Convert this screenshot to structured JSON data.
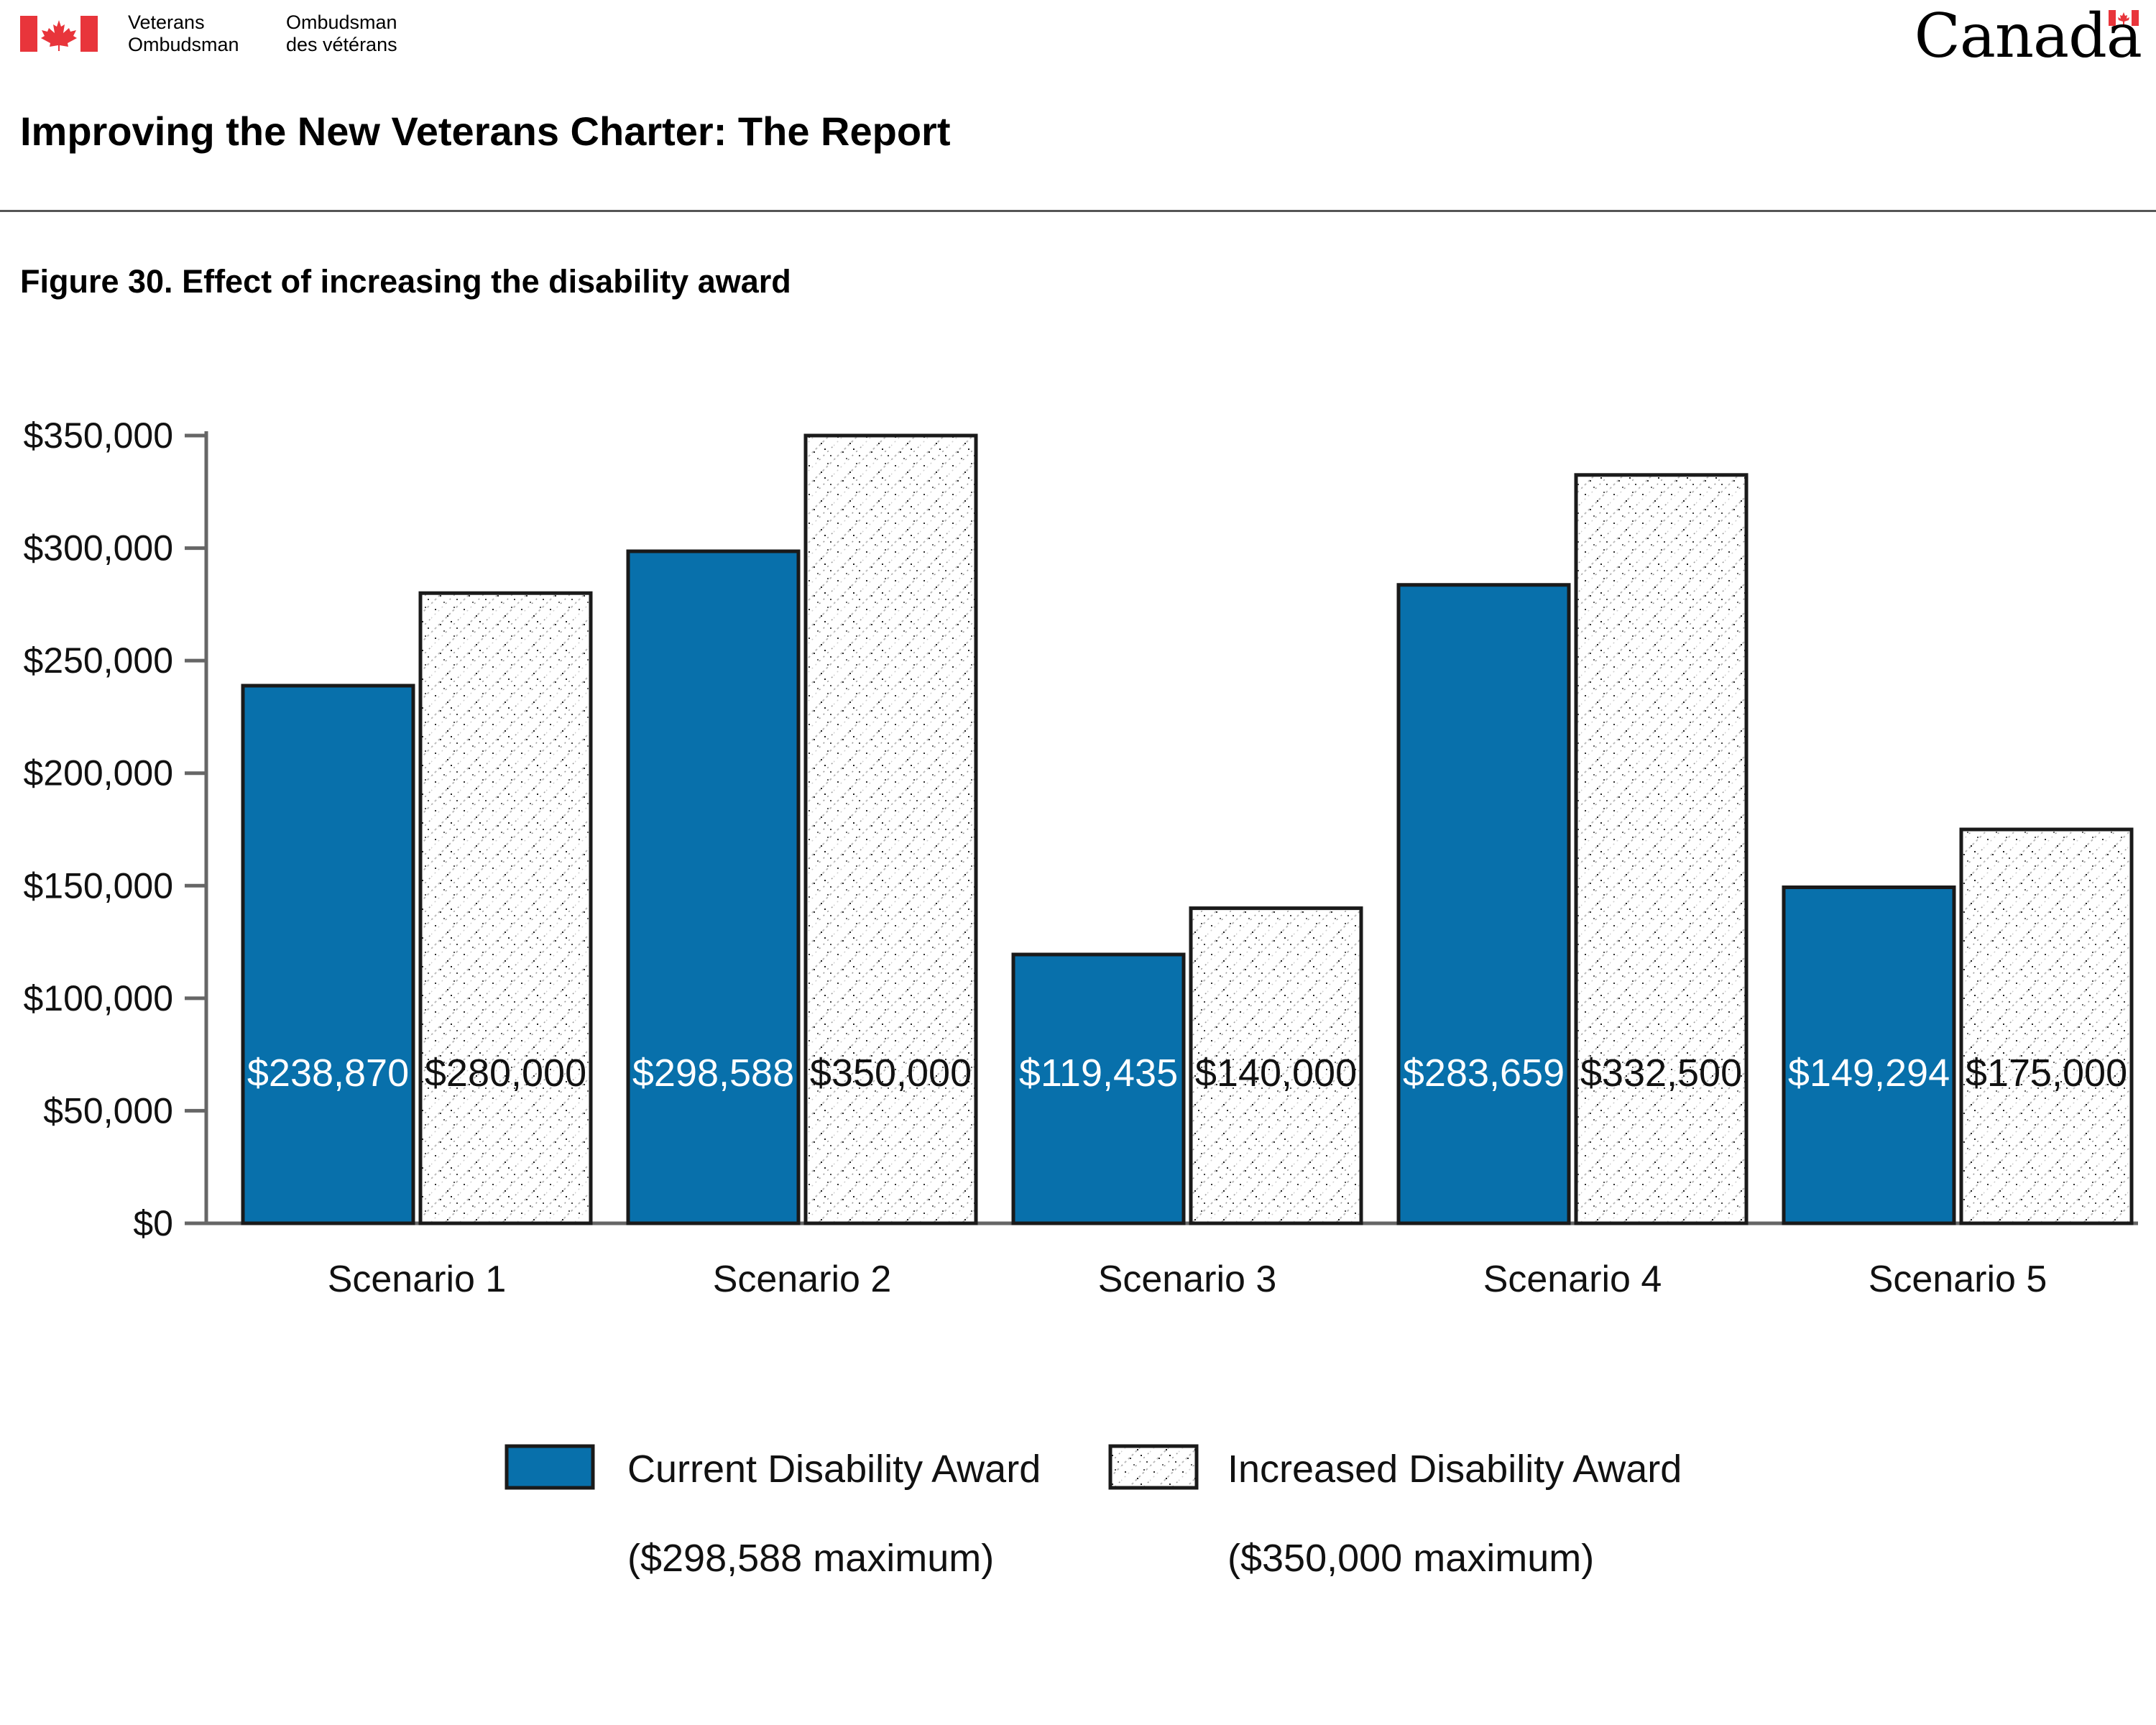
{
  "header": {
    "org_en_line1": "Veterans",
    "org_en_line2": "Ombudsman",
    "org_fr_line1": "Ombudsman",
    "org_fr_line2": "des vétérans",
    "wordmark": "Canada",
    "report_title": "Improving the New Veterans Charter: The Report"
  },
  "figure_title": "Figure 30. Effect of increasing the disability award",
  "colors": {
    "current": "#0870ab",
    "increased_fill": "#ffffff",
    "outline": "#1a1a1a",
    "axis": "#666666",
    "flag_red": "#e8353b"
  },
  "chart_data": {
    "type": "bar",
    "categories": [
      "Scenario 1",
      "Scenario 2",
      "Scenario 3",
      "Scenario 4",
      "Scenario 5"
    ],
    "series": [
      {
        "name": "Current Disability Award",
        "legend_line2": "($298,588 maximum)",
        "values": [
          238870,
          298588,
          119435,
          283659,
          149294
        ],
        "labels": [
          "$238,870",
          "$298,588",
          "$119,435",
          "$283,659",
          "$149,294"
        ]
      },
      {
        "name": "Increased Disability Award",
        "legend_line2": "($350,000 maximum)",
        "values": [
          280000,
          350000,
          140000,
          332500,
          175000
        ],
        "labels": [
          "$280,000",
          "$350,000",
          "$140,000",
          "$332,500",
          "$175,000"
        ]
      }
    ],
    "y_ticks": [
      0,
      50000,
      100000,
      150000,
      200000,
      250000,
      300000,
      350000
    ],
    "y_tick_labels": [
      "$0",
      "$50,000",
      "$100,000",
      "$150,000",
      "$200,000",
      "$250,000",
      "$300,000",
      "$350,000"
    ],
    "ylim": [
      0,
      350000
    ],
    "title": "",
    "xlabel": "",
    "ylabel": "",
    "grid": false,
    "legend_position": "bottom"
  }
}
